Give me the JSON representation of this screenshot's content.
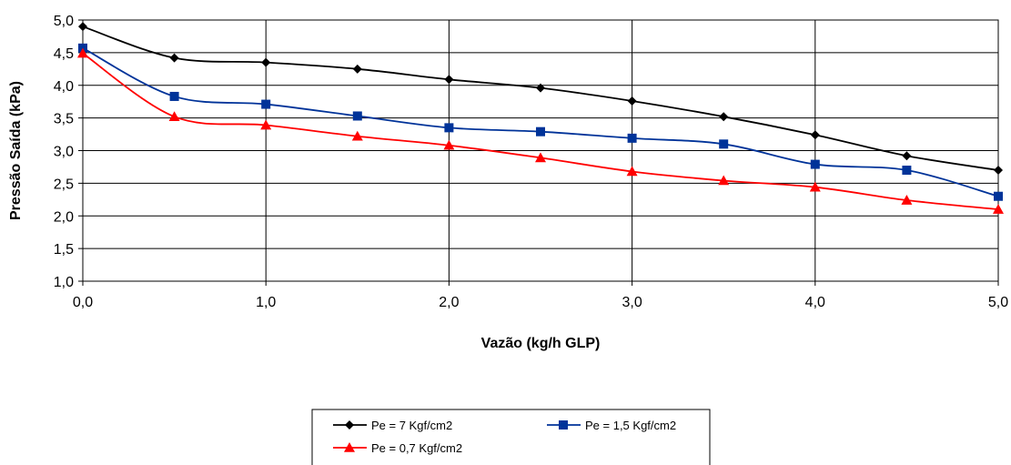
{
  "chart_data": {
    "type": "line",
    "xlabel": "Vazão (kg/h GLP)",
    "ylabel": "Pressão Saída (kPa)",
    "xlim": [
      0,
      5
    ],
    "ylim": [
      1,
      5
    ],
    "x_ticks": [
      "0,0",
      "1,0",
      "2,0",
      "3,0",
      "4,0",
      "5,0"
    ],
    "y_ticks": [
      "1,0",
      "1,5",
      "2,0",
      "2,5",
      "3,0",
      "3,5",
      "4,0",
      "4,5",
      "5,0"
    ],
    "x_tick_values": [
      0,
      1,
      2,
      3,
      4,
      5
    ],
    "y_tick_values": [
      1,
      1.5,
      2,
      2.5,
      3,
      3.5,
      4,
      4.5,
      5
    ],
    "x": [
      0,
      0.5,
      1,
      1.5,
      2,
      2.5,
      3,
      3.5,
      4,
      4.5,
      5
    ],
    "grid": true,
    "legend_position": "bottom",
    "series": [
      {
        "name": "Pe = 7 Kgf/cm2",
        "marker": "diamond",
        "color": "#000000",
        "values": [
          4.9,
          4.42,
          4.35,
          4.25,
          4.09,
          3.96,
          3.76,
          3.52,
          3.24,
          2.92,
          2.7
        ]
      },
      {
        "name": "Pe = 1,5 Kgf/cm2",
        "marker": "square",
        "color": "#003399",
        "values": [
          4.57,
          3.83,
          3.71,
          3.53,
          3.35,
          3.29,
          3.19,
          3.1,
          2.79,
          2.7,
          2.3
        ]
      },
      {
        "name": "Pe = 0,7 Kgf/cm2",
        "marker": "triangle",
        "color": "#ff0000",
        "values": [
          4.49,
          3.52,
          3.39,
          3.22,
          3.08,
          2.89,
          2.68,
          2.54,
          2.44,
          2.24,
          2.1
        ]
      }
    ]
  }
}
